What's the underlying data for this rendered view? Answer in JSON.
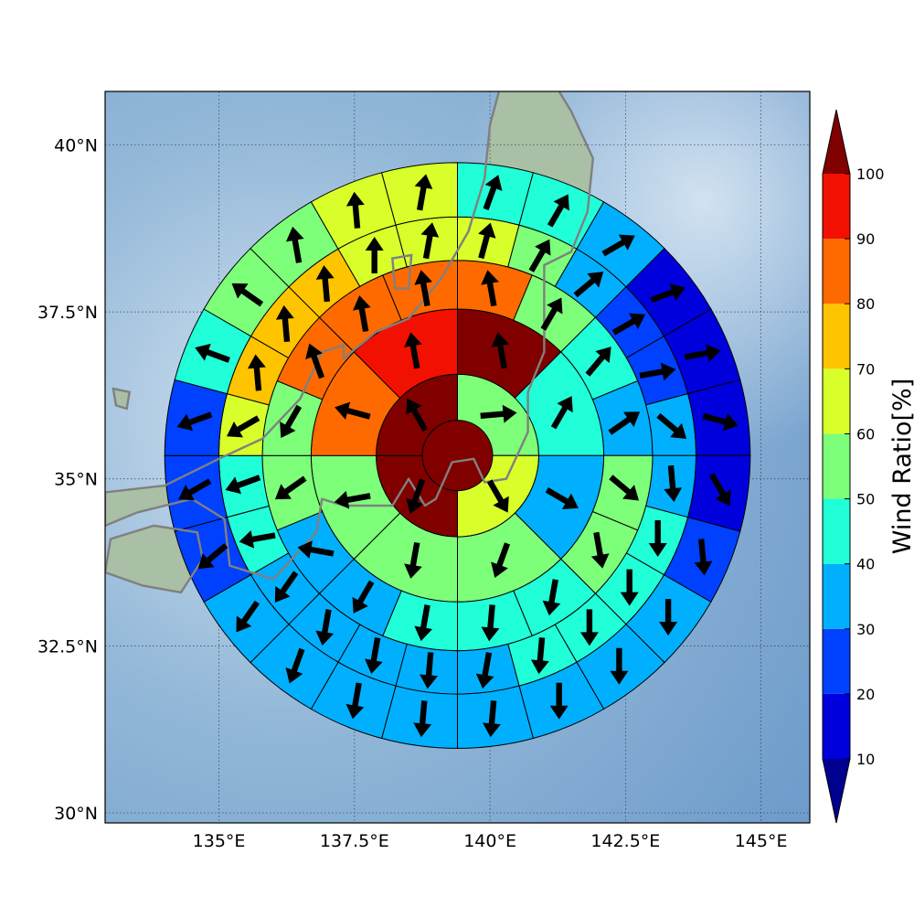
{
  "map": {
    "lon_range": [
      132.9,
      145.9
    ],
    "lat_range": [
      29.85,
      40.8
    ],
    "center": {
      "lon": 139.4,
      "lat": 35.35
    },
    "ring_radii_deg": [
      0.65,
      1.5,
      2.7,
      3.6,
      4.4,
      5.4
    ],
    "gridline_style": "dotted",
    "x_ticks": [
      {
        "value": 135,
        "label": "135°E"
      },
      {
        "value": 137.5,
        "label": "137.5°E"
      },
      {
        "value": 140,
        "label": "140°E"
      },
      {
        "value": 142.5,
        "label": "142.5°E"
      },
      {
        "value": 145,
        "label": "145°E"
      }
    ],
    "y_ticks": [
      {
        "value": 30,
        "label": "30°N"
      },
      {
        "value": 32.5,
        "label": "32.5°N"
      },
      {
        "value": 35,
        "label": "35°N"
      },
      {
        "value": 37.5,
        "label": "37.5°N"
      },
      {
        "value": 40,
        "label": "40°N"
      }
    ],
    "colors": {
      "ocean": "#7fa8cf",
      "land": "#a9bfa6",
      "coastline": "#808080",
      "cell_edge": "#000000",
      "arrow": "#000000"
    }
  },
  "colorbar": {
    "label": "Wind Ratio[%]",
    "bounds": [
      10,
      20,
      30,
      40,
      50,
      60,
      70,
      80,
      90,
      100
    ],
    "tick_labels": [
      "10",
      "20",
      "30",
      "40",
      "50",
      "60",
      "70",
      "80",
      "90",
      "100"
    ],
    "bin_colors": [
      "#0000dc",
      "#0040ff",
      "#00b0ff",
      "#20ffd8",
      "#7dff7a",
      "#d8ff2a",
      "#ffc400",
      "#ff6a00",
      "#f21000"
    ],
    "under_color": "#00008f",
    "over_color": "#800000",
    "extend": "both"
  },
  "chart_data": {
    "type": "polar-sector-map",
    "units": "%",
    "center": [
      139.4,
      35.35
    ],
    "rings": [
      {
        "ring": 0,
        "sectors": 1,
        "values": [
          100
        ],
        "arrows_deg": [
          null
        ]
      },
      {
        "ring": 1,
        "sectors": 4,
        "values": [
          55,
          65,
          100,
          100
        ],
        "arrows_deg": [
          5,
          -60,
          -110,
          120
        ]
      },
      {
        "ring": 2,
        "sectors": 8,
        "values": [
          100,
          45,
          35,
          55,
          55,
          55,
          85,
          95
        ],
        "arrows_deg": [
          100,
          60,
          -30,
          -110,
          -100,
          -170,
          165,
          100
        ]
      },
      {
        "ring": 3,
        "sectors": 16,
        "values": [
          85,
          55,
          45,
          35,
          55,
          55,
          45,
          45,
          45,
          35,
          35,
          55,
          55,
          85,
          85,
          85
        ],
        "arrows_deg": [
          100,
          60,
          50,
          35,
          -40,
          -80,
          -100,
          -95,
          -100,
          -120,
          170,
          -145,
          -120,
          110,
          100,
          100
        ]
      },
      {
        "ring": 4,
        "sectors": 24,
        "values": [
          65,
          55,
          35,
          25,
          25,
          35,
          35,
          45,
          45,
          45,
          45,
          35,
          35,
          35,
          35,
          35,
          45,
          45,
          65,
          75,
          75,
          75,
          65,
          65
        ],
        "arrows_deg": [
          75,
          60,
          40,
          30,
          10,
          -40,
          -85,
          -90,
          -90,
          -90,
          -95,
          -100,
          -95,
          -100,
          -100,
          -125,
          -170,
          -160,
          -150,
          95,
          95,
          95,
          90,
          80
        ],
        "ring_note": "approximate"
      },
      {
        "ring": 5,
        "sectors": 24,
        "values": [
          45,
          45,
          35,
          15,
          15,
          15,
          15,
          25,
          35,
          35,
          35,
          35,
          35,
          35,
          35,
          35,
          25,
          25,
          25,
          45,
          55,
          55,
          65,
          65
        ],
        "arrows_deg": [
          70,
          60,
          30,
          20,
          10,
          -15,
          -60,
          -85,
          -90,
          -90,
          -90,
          -95,
          -95,
          -100,
          -110,
          -125,
          -140,
          -150,
          -160,
          160,
          145,
          100,
          95,
          80
        ],
        "ring_note": "approximate"
      }
    ],
    "sector_angle_convention": "sectors start at north (0°) and proceed clockwise",
    "arrow_angle_convention": "math degrees, 0 = east, 90 = north"
  }
}
